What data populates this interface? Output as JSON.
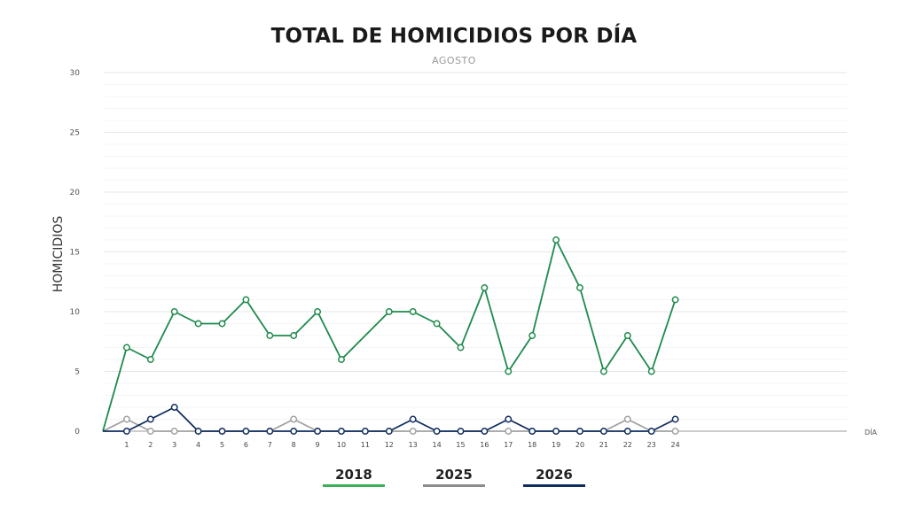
{
  "chart_data": {
    "type": "line",
    "title": "TOTAL DE HOMICIDIOS POR DÍA",
    "subtitle": "AGOSTO",
    "xlabel": "DÍA",
    "ylabel": "HOMICIDIOS",
    "ylim": [
      0,
      30
    ],
    "yticks": [
      0,
      5,
      10,
      15,
      20,
      25,
      30
    ],
    "xlim": [
      0,
      31
    ],
    "categories": [
      1,
      2,
      3,
      4,
      5,
      6,
      7,
      8,
      9,
      10,
      11,
      12,
      13,
      14,
      15,
      16,
      17,
      18,
      19,
      20,
      21,
      22,
      23,
      24
    ],
    "grid": true,
    "legend_position": "bottom",
    "series": [
      {
        "name": "2025",
        "color": "#a0a0a0",
        "x": [
          0,
          1,
          2,
          3,
          4,
          5,
          6,
          7,
          8,
          9,
          10,
          11,
          12,
          13,
          14,
          15,
          16,
          17,
          18,
          19,
          20,
          21,
          22,
          23,
          24
        ],
        "values": [
          0,
          1,
          0,
          0,
          0,
          0,
          0,
          0,
          1,
          0,
          0,
          0,
          0,
          0,
          0,
          0,
          0,
          0,
          0,
          0,
          0,
          0,
          1,
          0,
          0
        ]
      },
      {
        "name": "2018",
        "color": "#1e8a4c",
        "x": [
          0,
          1,
          2,
          3,
          4,
          5,
          6,
          7,
          8,
          9,
          10,
          12,
          13,
          14,
          15,
          16,
          17,
          18,
          19,
          20,
          21,
          22,
          23,
          24
        ],
        "values": [
          0,
          7,
          6,
          10,
          9,
          9,
          11,
          8,
          8,
          10,
          6,
          10,
          10,
          9,
          7,
          12,
          5,
          8,
          16,
          12,
          5,
          8,
          5,
          11
        ]
      },
      {
        "name": "2026",
        "color": "#0f2d5e",
        "x": [
          0,
          1,
          2,
          3,
          4,
          5,
          6,
          7,
          8,
          9,
          10,
          11,
          12,
          13,
          14,
          15,
          16,
          17,
          18,
          19,
          20,
          21,
          22,
          23,
          24
        ],
        "values": [
          0,
          0,
          1,
          2,
          0,
          0,
          0,
          0,
          0,
          0,
          0,
          0,
          0,
          1,
          0,
          0,
          0,
          1,
          0,
          0,
          0,
          0,
          0,
          0,
          1
        ]
      }
    ],
    "legend": [
      {
        "label": "2018",
        "color": "#3cb054"
      },
      {
        "label": "2025",
        "color": "#8c8c8c"
      },
      {
        "label": "2026",
        "color": "#0f2d5e"
      }
    ]
  }
}
